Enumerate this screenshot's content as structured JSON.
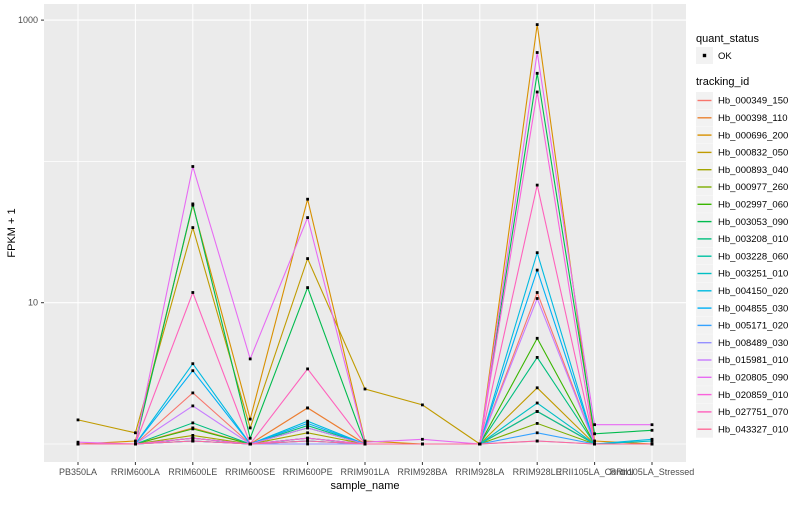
{
  "style": {
    "panel_bg": "#EBEBEB",
    "grid_color": "#FFFFFF",
    "legend_key_bg": "#F2F2F2",
    "tick_text_color": "#4D4D4D",
    "axis_title_color": "#000000",
    "tick_mark_color": "#333333",
    "point_color": "#000000"
  },
  "chart_data": {
    "type": "line",
    "title": "",
    "xlabel": "sample_name",
    "ylabel": "FPKM + 1",
    "y_scale": "log10",
    "ylim": [
      1,
      1000
    ],
    "grid": true,
    "legend_position": "right",
    "y_ticks": [
      {
        "value": 1000,
        "label": "1000"
      },
      {
        "value": 10,
        "label": "10"
      }
    ],
    "y_gridlines": [
      1,
      10,
      100,
      1000
    ],
    "categories": [
      "PB350LA",
      "RRIM600LA",
      "RRIM600LE",
      "RRIM600SE",
      "RRIM600PE",
      "RRIM901LA",
      "RRIM928BA",
      "RRIM928LA",
      "RRIM928LE",
      "RRII105LA_Control",
      "RRII105LA_Stressed"
    ],
    "point_shape": "filled-square",
    "series": [
      {
        "name": "Hb_000349_150",
        "color": "#F8766D",
        "values": [
          1,
          1,
          2.3,
          1,
          1.8,
          1,
          1,
          1,
          11.8,
          1,
          1
        ]
      },
      {
        "name": "Hb_000398_110",
        "color": "#EA8331",
        "values": [
          1,
          1,
          1.3,
          1,
          1.8,
          1,
          1,
          1,
          1.7,
          1,
          1
        ]
      },
      {
        "name": "Hb_000696_200",
        "color": "#D89000",
        "values": [
          1,
          1.05,
          49,
          1.5,
          54,
          1.05,
          1,
          1,
          930,
          1.05,
          1
        ]
      },
      {
        "name": "Hb_000832_050",
        "color": "#C09B00",
        "values": [
          1.48,
          1.2,
          34,
          1.3,
          20.5,
          2.45,
          1.89,
          1,
          2.5,
          1,
          1
        ]
      },
      {
        "name": "Hb_000893_040",
        "color": "#A3A500",
        "values": [
          1,
          1,
          1.15,
          1,
          1.2,
          1,
          1,
          1,
          1.7,
          1,
          1
        ]
      },
      {
        "name": "Hb_000977_260",
        "color": "#7CAE00",
        "values": [
          1,
          1,
          1.1,
          1,
          1.1,
          1,
          1,
          1,
          1.4,
          1,
          1
        ]
      },
      {
        "name": "Hb_002997_060",
        "color": "#39B600",
        "values": [
          1,
          1,
          1.28,
          1,
          1.3,
          1,
          1,
          1,
          5.6,
          1,
          1
        ]
      },
      {
        "name": "Hb_003053_090",
        "color": "#00BB4E",
        "values": [
          1,
          1,
          50,
          1.1,
          12.8,
          1,
          1,
          1,
          420,
          1.18,
          1.25
        ]
      },
      {
        "name": "Hb_003208_010",
        "color": "#00BF7D",
        "values": [
          1,
          1,
          1.41,
          1,
          1.35,
          1,
          1,
          1,
          4.1,
          1,
          1
        ]
      },
      {
        "name": "Hb_003228_060",
        "color": "#00C1A3",
        "values": [
          1,
          1,
          1.1,
          1,
          1.1,
          1,
          1,
          1,
          1.7,
          1,
          1
        ]
      },
      {
        "name": "Hb_003251_010",
        "color": "#00BFC4",
        "values": [
          1,
          1,
          1.05,
          1,
          1.05,
          1,
          1,
          1,
          1.95,
          1,
          1.05
        ]
      },
      {
        "name": "Hb_004150_020",
        "color": "#00BAE0",
        "values": [
          1,
          1,
          3.7,
          1,
          1.45,
          1,
          1,
          1,
          22.6,
          1,
          1.08
        ]
      },
      {
        "name": "Hb_004855_030",
        "color": "#00B0F6",
        "values": [
          1,
          1,
          3.3,
          1,
          1.4,
          1,
          1,
          1,
          17,
          1,
          1
        ]
      },
      {
        "name": "Hb_005171_020",
        "color": "#35A2FF",
        "values": [
          1,
          1,
          1.05,
          1,
          1.05,
          1,
          1,
          1,
          1.2,
          1,
          1
        ]
      },
      {
        "name": "Hb_008489_030",
        "color": "#9590FF",
        "values": [
          1,
          1,
          1.05,
          1,
          1,
          1,
          1,
          1,
          1.05,
          1,
          1
        ]
      },
      {
        "name": "Hb_015981_010",
        "color": "#C77CFF",
        "values": [
          1,
          1,
          1.86,
          1,
          1.3,
          1,
          1,
          1,
          10.7,
          1,
          1
        ]
      },
      {
        "name": "Hb_020805_090",
        "color": "#E76BF3",
        "values": [
          1.03,
          1,
          92,
          4,
          40,
          1.03,
          1.08,
          1,
          590,
          1.37,
          1.37
        ]
      },
      {
        "name": "Hb_020859_010",
        "color": "#FA62DB",
        "values": [
          1,
          1,
          1.1,
          1,
          1.1,
          1,
          1,
          1,
          310,
          1,
          1
        ]
      },
      {
        "name": "Hb_027751_070",
        "color": "#FF62BC",
        "values": [
          1,
          1,
          11.8,
          1,
          3.4,
          1,
          1,
          1,
          68,
          1,
          1
        ]
      },
      {
        "name": "Hb_043327_010",
        "color": "#FF6A98",
        "values": [
          1,
          1,
          1.05,
          1,
          1.05,
          1,
          1,
          1,
          1.05,
          1,
          1
        ]
      }
    ],
    "legend": {
      "quant_status": {
        "title": "quant_status",
        "items": [
          {
            "label": "OK",
            "marker": "point"
          }
        ]
      },
      "tracking_id": {
        "title": "tracking_id"
      }
    }
  }
}
